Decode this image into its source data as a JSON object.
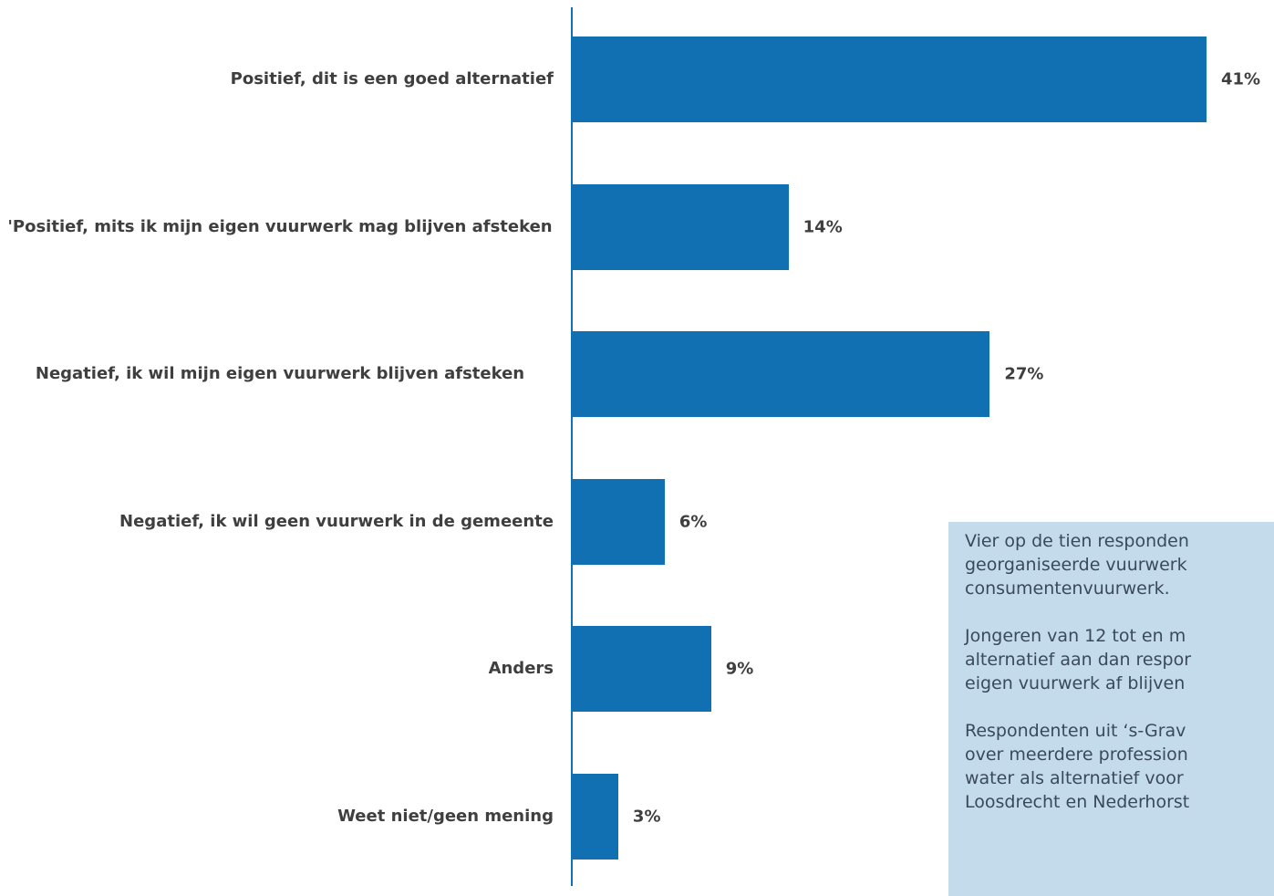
{
  "chart_data": {
    "type": "bar",
    "orientation": "horizontal",
    "categories": [
      "Positief, dit is een goed alternatief",
      "'Positief, mits ik mijn eigen vuurwerk mag blijven afsteken",
      "Negatief, ik wil mijn eigen vuurwerk blijven afsteken",
      "Negatief, ik wil geen vuurwerk in de gemeente",
      "Anders",
      "Weet niet/geen mening"
    ],
    "values": [
      41,
      14,
      27,
      6,
      9,
      3
    ],
    "value_labels": [
      "41%",
      "14%",
      "27%",
      "6%",
      "9%",
      "3%"
    ],
    "title": "",
    "xlabel": "",
    "ylabel": "",
    "xlim": [
      0,
      45
    ],
    "grid": false,
    "legend": "none",
    "bar_color": "#1170b2"
  },
  "callout": {
    "text": "Vier op de tien responden\ngeorganiseerde vuurwerk\nconsumentenvuurwerk.\n\nJongeren van 12 tot en m\nalternatief aan dan respor\neigen vuurwerk af blijven\n\nRespondenten uit ‘s-Grav\nover meerdere profession\nwater als alternatief voor\nLoosdrecht en Nederhorst",
    "background": "#c4dbec"
  }
}
